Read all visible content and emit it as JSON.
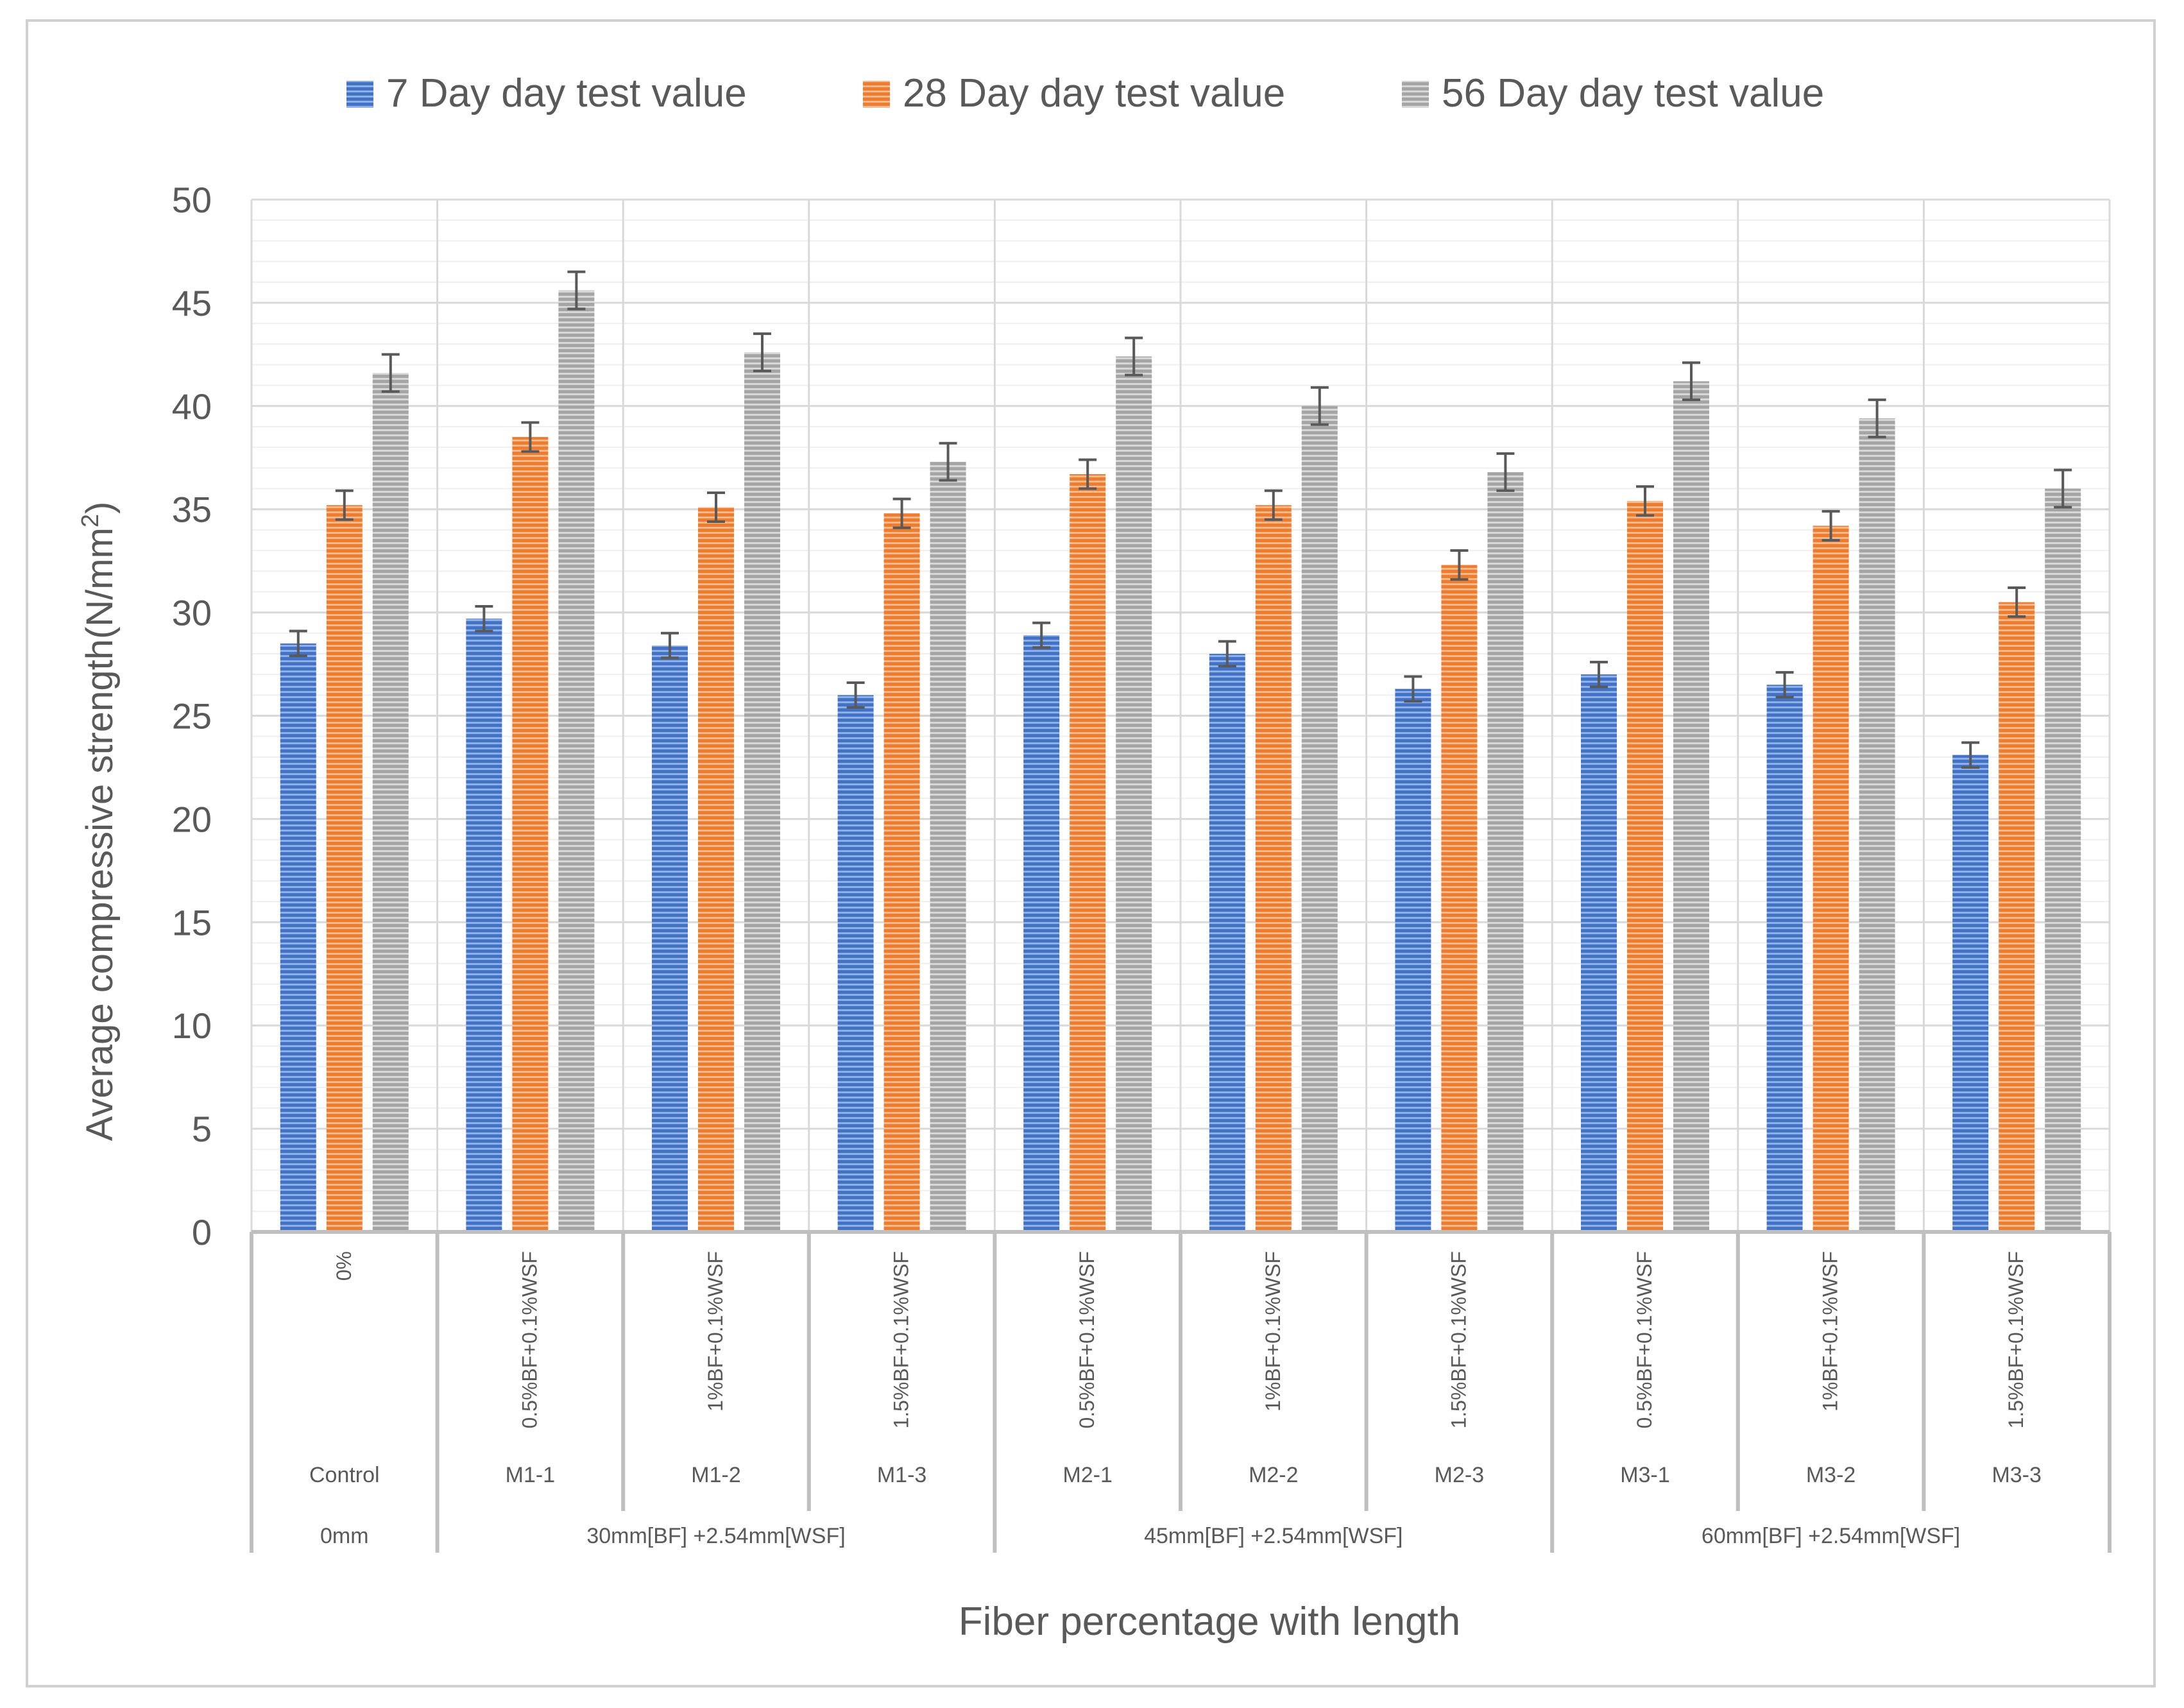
{
  "chart_data": {
    "type": "bar",
    "title": "",
    "xlabel": "Fiber percentage with length",
    "ylabel": "Average compressive strength(N/mm²)",
    "ylabel_main": "Average compressive strength(N/mm",
    "ylabel_sup": "2",
    "ylabel_close": ")",
    "ylim": [
      0,
      50
    ],
    "yticks": [
      0,
      5,
      10,
      15,
      20,
      25,
      30,
      35,
      40,
      45,
      50
    ],
    "grid": true,
    "legend_position": "top",
    "categories": [
      {
        "code": "Control",
        "mix": "0%"
      },
      {
        "code": "M1-1",
        "mix": "0.5%BF+0.1%WSF"
      },
      {
        "code": "M1-2",
        "mix": "1%BF+0.1%WSF"
      },
      {
        "code": "M1-3",
        "mix": "1.5%BF+0.1%WSF"
      },
      {
        "code": "M2-1",
        "mix": "0.5%BF+0.1%WSF"
      },
      {
        "code": "M2-2",
        "mix": "1%BF+0.1%WSF"
      },
      {
        "code": "M2-3",
        "mix": "1.5%BF+0.1%WSF"
      },
      {
        "code": "M3-1",
        "mix": "0.5%BF+0.1%WSF"
      },
      {
        "code": "M3-2",
        "mix": "1%BF+0.1%WSF"
      },
      {
        "code": "M3-3",
        "mix": "1.5%BF+0.1%WSF"
      }
    ],
    "groups": [
      {
        "label": "0mm",
        "from": 0,
        "to": 0
      },
      {
        "label": "30mm[BF] +2.54mm[WSF]",
        "from": 1,
        "to": 3
      },
      {
        "label": "45mm[BF] +2.54mm[WSF]",
        "from": 4,
        "to": 6
      },
      {
        "label": "60mm[BF] +2.54mm[WSF]",
        "from": 7,
        "to": 9
      }
    ],
    "series": [
      {
        "name": "7 Day day test value",
        "color": "#4472C4",
        "values": [
          28.5,
          29.7,
          28.4,
          26.0,
          28.9,
          28.0,
          26.3,
          27.0,
          26.5,
          23.1
        ],
        "errors": [
          0.6,
          0.6,
          0.6,
          0.6,
          0.6,
          0.6,
          0.6,
          0.6,
          0.6,
          0.6
        ]
      },
      {
        "name": "28 Day day test value",
        "color": "#ED7D31",
        "values": [
          35.2,
          38.5,
          35.1,
          34.8,
          36.7,
          35.2,
          32.3,
          35.4,
          34.2,
          30.5
        ],
        "errors": [
          0.7,
          0.7,
          0.7,
          0.7,
          0.7,
          0.7,
          0.7,
          0.7,
          0.7,
          0.7
        ]
      },
      {
        "name": "56 Day day test value",
        "color": "#A5A5A5",
        "values": [
          41.6,
          45.6,
          42.6,
          37.3,
          42.4,
          40.0,
          36.8,
          41.2,
          39.4,
          36.0
        ],
        "errors": [
          0.9,
          0.9,
          0.9,
          0.9,
          0.9,
          0.9,
          0.9,
          0.9,
          0.9,
          0.9
        ]
      }
    ]
  }
}
